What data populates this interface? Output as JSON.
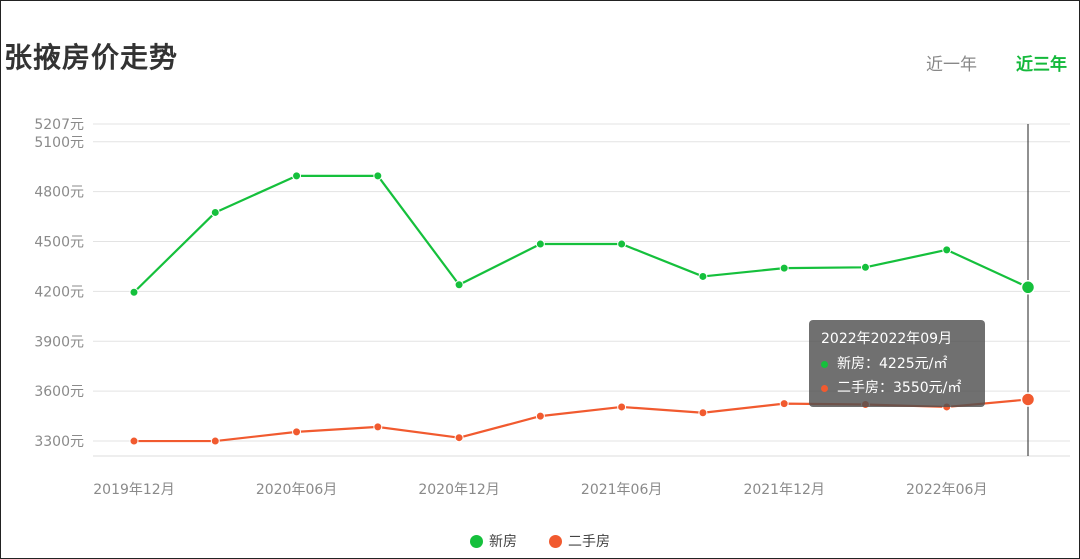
{
  "header": {
    "title": "张掖房价走势",
    "tabs": [
      {
        "label": "近一年",
        "active": false
      },
      {
        "label": "近三年",
        "active": true
      }
    ]
  },
  "chart_data": {
    "type": "line",
    "title": "张掖房价走势",
    "x": [
      "2019-12",
      "2020-03",
      "2020-06",
      "2020-09",
      "2020-12",
      "2021-03",
      "2021-06",
      "2021-09",
      "2021-12",
      "2022-03",
      "2022-06",
      "2022-09"
    ],
    "x_tick_labels": [
      "2019年12月",
      "2020年06月",
      "2020年12月",
      "2021年06月",
      "2021年12月",
      "2022年06月"
    ],
    "y_tick_labels": [
      "5207元",
      "5100元",
      "4800元",
      "4500元",
      "4200元",
      "3900元",
      "3600元",
      "3300元"
    ],
    "y_ticks": [
      5207,
      5100,
      4800,
      4500,
      4200,
      3900,
      3600,
      3300
    ],
    "ylim": [
      3210,
      5207
    ],
    "grid": true,
    "legend_position": "bottom",
    "series": [
      {
        "name": "新房",
        "color": "#15c03c",
        "values": [
          4195,
          4675,
          4895,
          4895,
          4240,
          4485,
          4485,
          4290,
          4340,
          4345,
          4450,
          4225
        ]
      },
      {
        "name": "二手房",
        "color": "#f15a2f",
        "values": [
          3300,
          3300,
          3355,
          3385,
          3320,
          3450,
          3505,
          3470,
          3525,
          3520,
          3505,
          3550
        ]
      }
    ],
    "tooltip": {
      "title": "2022年2022年09月",
      "rows": [
        "新房：4225元/㎡",
        "二手房：3550元/㎡"
      ]
    }
  }
}
